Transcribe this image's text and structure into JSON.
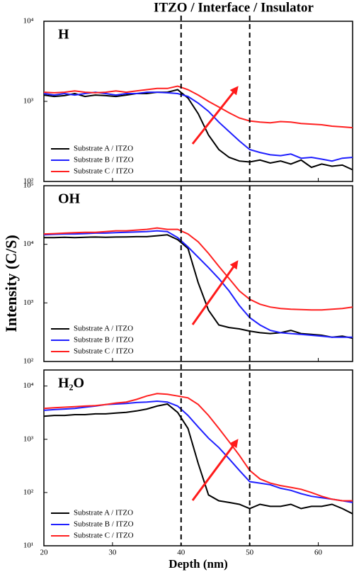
{
  "title": "ITZO / Interface / Insulator",
  "ylabel": "Intensity (C/S)",
  "vlines": [
    40,
    50
  ],
  "chart_data": [
    {
      "type": "line",
      "label": "H",
      "log": true,
      "grid": false,
      "legend": "lower left",
      "x": [
        20,
        21.5,
        23,
        24.5,
        26,
        27.5,
        29,
        30.5,
        32,
        33.5,
        35,
        36.5,
        38,
        39.5,
        41,
        42.5,
        44,
        45.5,
        47,
        48.5,
        50,
        51.5,
        53,
        54.5,
        56,
        57.5,
        59,
        60.5,
        62,
        63.5,
        65
      ],
      "xlim": [
        20,
        65
      ],
      "xticks": [
        20,
        30,
        40,
        50,
        60
      ],
      "ylim": [
        100,
        10000
      ],
      "yticks": [
        {
          "value": 100,
          "label": "10²"
        },
        {
          "value": 1000,
          "label": "10³"
        },
        {
          "value": 10000,
          "label": "10⁴"
        }
      ],
      "series": [
        {
          "name": "Substrate A / ITZO",
          "color": "#000000",
          "values": [
            1200,
            1150,
            1180,
            1250,
            1150,
            1200,
            1180,
            1150,
            1200,
            1250,
            1250,
            1300,
            1300,
            1400,
            1100,
            700,
            380,
            250,
            200,
            180,
            175,
            185,
            170,
            180,
            165,
            185,
            150,
            165,
            155,
            160,
            140
          ]
        },
        {
          "name": "Substrate B / ITZO",
          "color": "#1f1fff",
          "values": [
            1250,
            1200,
            1250,
            1200,
            1250,
            1300,
            1250,
            1200,
            1250,
            1250,
            1300,
            1300,
            1280,
            1250,
            1150,
            950,
            750,
            550,
            420,
            320,
            250,
            230,
            215,
            210,
            220,
            195,
            200,
            190,
            180,
            195,
            200
          ]
        },
        {
          "name": "Substrate C / ITZO",
          "color": "#ff2020",
          "values": [
            1300,
            1280,
            1300,
            1350,
            1300,
            1280,
            1300,
            1350,
            1300,
            1350,
            1400,
            1450,
            1450,
            1550,
            1400,
            1200,
            1000,
            850,
            720,
            620,
            570,
            550,
            540,
            560,
            550,
            530,
            520,
            510,
            490,
            480,
            470
          ]
        }
      ]
    },
    {
      "type": "line",
      "label": "OH",
      "log": true,
      "grid": false,
      "legend": "lower left",
      "x": [
        20,
        21.5,
        23,
        24.5,
        26,
        27.5,
        29,
        30.5,
        32,
        33.5,
        35,
        36.5,
        38,
        39.5,
        41,
        42.5,
        44,
        45.5,
        47,
        48.5,
        50,
        51.5,
        53,
        54.5,
        56,
        57.5,
        59,
        60.5,
        62,
        63.5,
        65
      ],
      "xlim": [
        20,
        65
      ],
      "xticks": [
        20,
        30,
        40,
        50,
        60
      ],
      "ylim": [
        100,
        100000
      ],
      "yticks": [
        {
          "value": 100,
          "label": "10²"
        },
        {
          "value": 1000,
          "label": "10³"
        },
        {
          "value": 10000,
          "label": "10⁴"
        },
        {
          "value": 100000,
          "label": "10⁵"
        }
      ],
      "series": [
        {
          "name": "Substrate A / ITZO",
          "color": "#000000",
          "values": [
            13000,
            13000,
            13200,
            13000,
            13200,
            13300,
            13200,
            13300,
            13400,
            13500,
            13500,
            14000,
            14500,
            12000,
            8500,
            2200,
            750,
            420,
            380,
            360,
            330,
            310,
            300,
            310,
            340,
            300,
            290,
            280,
            260,
            270,
            250
          ]
        },
        {
          "name": "Substrate B / ITZO",
          "color": "#1f1fff",
          "values": [
            14500,
            14800,
            15000,
            15000,
            15200,
            15500,
            15500,
            15800,
            16000,
            16200,
            16500,
            17000,
            16500,
            13000,
            9000,
            6000,
            4000,
            2600,
            1600,
            900,
            560,
            420,
            340,
            310,
            300,
            290,
            280,
            270,
            260,
            260,
            260
          ]
        },
        {
          "name": "Substrate C / ITZO",
          "color": "#ff2020",
          "values": [
            15000,
            15200,
            15500,
            15800,
            16000,
            16000,
            16500,
            17000,
            17000,
            17500,
            18000,
            19000,
            18000,
            18000,
            15000,
            11000,
            7000,
            4200,
            2600,
            1600,
            1150,
            950,
            850,
            800,
            780,
            770,
            760,
            760,
            780,
            800,
            850
          ]
        }
      ]
    },
    {
      "type": "line",
      "label": "H₂O",
      "log": true,
      "grid": false,
      "legend": "lower left",
      "xlabel": "Depth (nm)",
      "x": [
        20,
        21.5,
        23,
        24.5,
        26,
        27.5,
        29,
        30.5,
        32,
        33.5,
        35,
        36.5,
        38,
        39.5,
        41,
        42.5,
        44,
        45.5,
        47,
        48.5,
        50,
        51.5,
        53,
        54.5,
        56,
        57.5,
        59,
        60.5,
        62,
        63.5,
        65
      ],
      "xlim": [
        20,
        65
      ],
      "xticks": [
        20,
        30,
        40,
        50,
        60
      ],
      "ylim": [
        10,
        20000
      ],
      "yticks": [
        {
          "value": 10,
          "label": "10¹"
        },
        {
          "value": 100,
          "label": "10²"
        },
        {
          "value": 1000,
          "label": "10³"
        },
        {
          "value": 10000,
          "label": "10⁴"
        }
      ],
      "series": [
        {
          "name": "Substrate A / ITZO",
          "color": "#000000",
          "values": [
            2700,
            2800,
            2800,
            2900,
            2900,
            3000,
            3000,
            3100,
            3200,
            3400,
            3700,
            4200,
            4600,
            3200,
            1600,
            350,
            90,
            70,
            65,
            60,
            50,
            60,
            55,
            55,
            60,
            50,
            55,
            55,
            60,
            50,
            40
          ]
        },
        {
          "name": "Substrate B / ITZO",
          "color": "#1f1fff",
          "values": [
            3500,
            3600,
            3700,
            3800,
            4000,
            4200,
            4500,
            4600,
            4700,
            4900,
            5000,
            5200,
            5000,
            4200,
            2800,
            1700,
            1050,
            700,
            430,
            260,
            160,
            150,
            140,
            120,
            110,
            95,
            85,
            80,
            75,
            70,
            65
          ]
        },
        {
          "name": "Substrate C / ITZO",
          "color": "#ff2020",
          "values": [
            3800,
            3900,
            4000,
            4100,
            4200,
            4300,
            4500,
            4800,
            5000,
            5600,
            6500,
            7200,
            7000,
            6500,
            6000,
            4500,
            2800,
            1600,
            900,
            500,
            260,
            180,
            150,
            135,
            125,
            115,
            100,
            85,
            75,
            70,
            70
          ]
        }
      ]
    }
  ]
}
